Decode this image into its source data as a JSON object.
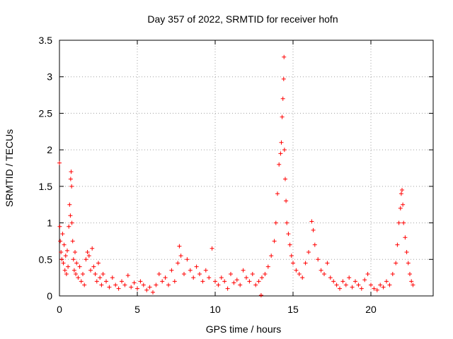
{
  "chart_data": {
    "type": "scatter",
    "title": "Day 357 of 2022, SRMTID for receiver hofn",
    "xlabel": "GPS time / hours",
    "ylabel": "SRMTID / TECUs",
    "xlim": [
      0,
      24
    ],
    "ylim": [
      0,
      3.5
    ],
    "x_ticks": [
      0,
      5,
      10,
      15,
      20
    ],
    "x_tick_labels": [
      "0",
      "5",
      "10",
      "15",
      "20"
    ],
    "y_ticks": [
      0,
      0.5,
      1,
      1.5,
      2,
      2.5,
      3,
      3.5
    ],
    "y_tick_labels": [
      "0",
      "0.5",
      "1",
      "1.5",
      "2",
      "2.5",
      "3",
      "3.5"
    ],
    "grid": true,
    "marker": "+",
    "color": "#ff0000",
    "series": [
      {
        "name": "SRMTID",
        "points": [
          [
            0.0,
            1.82
          ],
          [
            0.02,
            0.95
          ],
          [
            0.05,
            0.75
          ],
          [
            0.1,
            0.6
          ],
          [
            0.15,
            0.5
          ],
          [
            0.2,
            0.85
          ],
          [
            0.25,
            0.45
          ],
          [
            0.3,
            0.7
          ],
          [
            0.35,
            0.35
          ],
          [
            0.4,
            0.55
          ],
          [
            0.45,
            0.3
          ],
          [
            0.5,
            0.62
          ],
          [
            0.55,
            0.4
          ],
          [
            0.6,
            0.95
          ],
          [
            0.65,
            1.25
          ],
          [
            0.7,
            1.1
          ],
          [
            0.72,
            1.6
          ],
          [
            0.75,
            1.7
          ],
          [
            0.78,
            1.5
          ],
          [
            0.8,
            1.0
          ],
          [
            0.85,
            0.75
          ],
          [
            0.9,
            0.5
          ],
          [
            0.95,
            0.35
          ],
          [
            1.0,
            0.6
          ],
          [
            1.05,
            0.3
          ],
          [
            1.1,
            0.45
          ],
          [
            1.2,
            0.25
          ],
          [
            1.3,
            0.4
          ],
          [
            1.4,
            0.2
          ],
          [
            1.5,
            0.3
          ],
          [
            1.6,
            0.15
          ],
          [
            1.7,
            0.5
          ],
          [
            1.8,
            0.6
          ],
          [
            1.9,
            0.55
          ],
          [
            2.0,
            0.35
          ],
          [
            2.1,
            0.65
          ],
          [
            2.2,
            0.4
          ],
          [
            2.3,
            0.3
          ],
          [
            2.4,
            0.2
          ],
          [
            2.5,
            0.45
          ],
          [
            2.6,
            0.25
          ],
          [
            2.7,
            0.15
          ],
          [
            2.8,
            0.3
          ],
          [
            3.0,
            0.2
          ],
          [
            3.2,
            0.12
          ],
          [
            3.4,
            0.25
          ],
          [
            3.6,
            0.15
          ],
          [
            3.8,
            0.1
          ],
          [
            4.0,
            0.2
          ],
          [
            4.2,
            0.15
          ],
          [
            4.4,
            0.28
          ],
          [
            4.6,
            0.12
          ],
          [
            4.8,
            0.18
          ],
          [
            5.0,
            0.1
          ],
          [
            5.2,
            0.2
          ],
          [
            5.4,
            0.15
          ],
          [
            5.6,
            0.08
          ],
          [
            5.8,
            0.12
          ],
          [
            6.0,
            0.05
          ],
          [
            6.2,
            0.15
          ],
          [
            6.4,
            0.3
          ],
          [
            6.6,
            0.2
          ],
          [
            6.8,
            0.25
          ],
          [
            7.0,
            0.15
          ],
          [
            7.2,
            0.35
          ],
          [
            7.4,
            0.2
          ],
          [
            7.6,
            0.45
          ],
          [
            7.7,
            0.68
          ],
          [
            7.8,
            0.55
          ],
          [
            8.0,
            0.3
          ],
          [
            8.2,
            0.5
          ],
          [
            8.4,
            0.35
          ],
          [
            8.6,
            0.25
          ],
          [
            8.8,
            0.4
          ],
          [
            9.0,
            0.3
          ],
          [
            9.2,
            0.2
          ],
          [
            9.4,
            0.35
          ],
          [
            9.6,
            0.25
          ],
          [
            9.8,
            0.65
          ],
          [
            10.0,
            0.2
          ],
          [
            10.2,
            0.15
          ],
          [
            10.4,
            0.25
          ],
          [
            10.6,
            0.2
          ],
          [
            10.8,
            0.1
          ],
          [
            11.0,
            0.3
          ],
          [
            11.2,
            0.18
          ],
          [
            11.4,
            0.22
          ],
          [
            11.6,
            0.15
          ],
          [
            11.8,
            0.35
          ],
          [
            12.0,
            0.25
          ],
          [
            12.2,
            0.2
          ],
          [
            12.4,
            0.3
          ],
          [
            12.6,
            0.15
          ],
          [
            12.8,
            0.2
          ],
          [
            12.95,
            0.01
          ],
          [
            13.0,
            0.25
          ],
          [
            13.2,
            0.3
          ],
          [
            13.4,
            0.4
          ],
          [
            13.6,
            0.55
          ],
          [
            13.8,
            0.75
          ],
          [
            13.9,
            1.0
          ],
          [
            14.0,
            1.4
          ],
          [
            14.1,
            1.8
          ],
          [
            14.2,
            1.95
          ],
          [
            14.25,
            2.1
          ],
          [
            14.3,
            2.45
          ],
          [
            14.35,
            2.7
          ],
          [
            14.4,
            2.97
          ],
          [
            14.42,
            3.27
          ],
          [
            14.45,
            2.0
          ],
          [
            14.5,
            1.6
          ],
          [
            14.55,
            1.3
          ],
          [
            14.6,
            1.0
          ],
          [
            14.7,
            0.85
          ],
          [
            14.8,
            0.7
          ],
          [
            14.9,
            0.55
          ],
          [
            15.0,
            0.45
          ],
          [
            15.2,
            0.35
          ],
          [
            15.4,
            0.3
          ],
          [
            15.6,
            0.25
          ],
          [
            15.8,
            0.45
          ],
          [
            16.0,
            0.6
          ],
          [
            16.2,
            1.02
          ],
          [
            16.3,
            0.9
          ],
          [
            16.4,
            0.7
          ],
          [
            16.6,
            0.5
          ],
          [
            16.8,
            0.35
          ],
          [
            17.0,
            0.3
          ],
          [
            17.2,
            0.45
          ],
          [
            17.4,
            0.25
          ],
          [
            17.6,
            0.2
          ],
          [
            17.8,
            0.15
          ],
          [
            18.0,
            0.1
          ],
          [
            18.2,
            0.2
          ],
          [
            18.4,
            0.15
          ],
          [
            18.6,
            0.25
          ],
          [
            18.8,
            0.12
          ],
          [
            19.0,
            0.2
          ],
          [
            19.2,
            0.15
          ],
          [
            19.4,
            0.1
          ],
          [
            19.6,
            0.22
          ],
          [
            19.8,
            0.3
          ],
          [
            20.0,
            0.15
          ],
          [
            20.2,
            0.1
          ],
          [
            20.4,
            0.08
          ],
          [
            20.6,
            0.15
          ],
          [
            20.8,
            0.12
          ],
          [
            21.0,
            0.2
          ],
          [
            21.2,
            0.15
          ],
          [
            21.4,
            0.3
          ],
          [
            21.6,
            0.45
          ],
          [
            21.7,
            0.7
          ],
          [
            21.8,
            1.0
          ],
          [
            21.9,
            1.2
          ],
          [
            21.95,
            1.4
          ],
          [
            22.0,
            1.45
          ],
          [
            22.05,
            1.25
          ],
          [
            22.1,
            1.0
          ],
          [
            22.2,
            0.8
          ],
          [
            22.3,
            0.6
          ],
          [
            22.4,
            0.45
          ],
          [
            22.5,
            0.3
          ],
          [
            22.6,
            0.2
          ],
          [
            22.7,
            0.15
          ]
        ]
      }
    ]
  }
}
